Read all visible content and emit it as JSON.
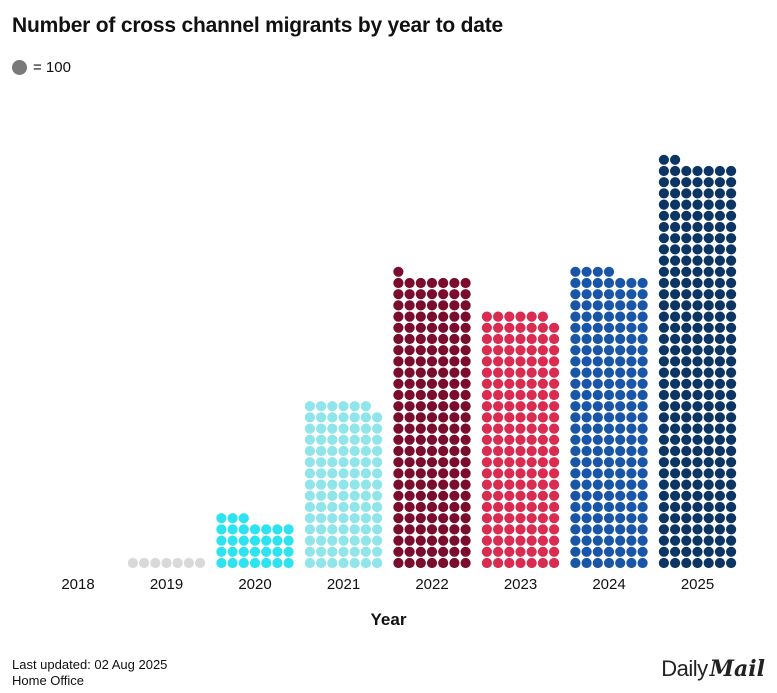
{
  "title": "Number of cross channel migrants by year to date",
  "legend": {
    "color": "#7a7a7a",
    "label": "= 100"
  },
  "footer": {
    "updated": "Last updated: 02 Aug 2025",
    "source": "Home Office"
  },
  "brand": {
    "daily": "Daily",
    "mail": "Mail"
  },
  "chart_data": {
    "type": "bar",
    "title": "Number of cross channel migrants by year to date",
    "xlabel": "Year",
    "unit_per_dot": 100,
    "categories": [
      "2018",
      "2019",
      "2020",
      "2021",
      "2022",
      "2023",
      "2024",
      "2025"
    ],
    "values": [
      0,
      700,
      3100,
      10400,
      18300,
      16000,
      18600,
      25400
    ],
    "colors": [
      "#d9d9d9",
      "#d9d9d9",
      "#2ee3f0",
      "#8fe5ea",
      "#7a0d2e",
      "#d92c50",
      "#1a56a8",
      "#0c3564"
    ]
  }
}
